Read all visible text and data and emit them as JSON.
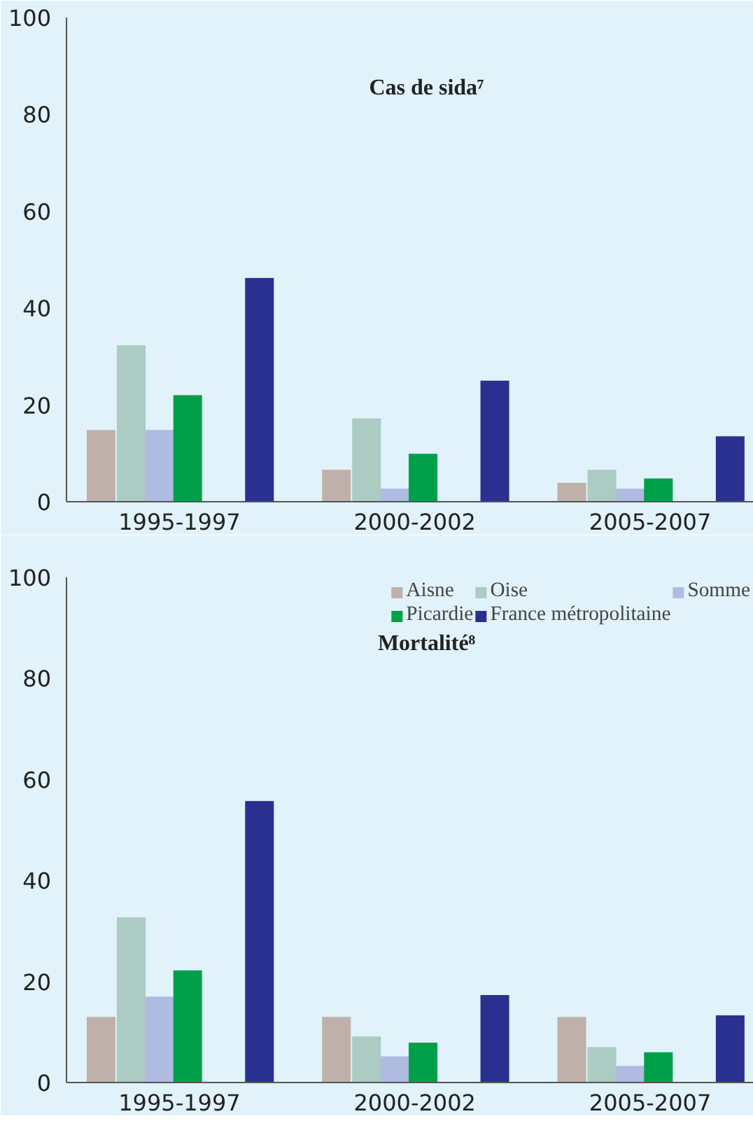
{
  "chart_data": [
    {
      "type": "bar",
      "title": "Cas de sida⁷",
      "categories": [
        "1995-1997",
        "2000-2002",
        "2005-2007"
      ],
      "ylim": [
        0,
        100
      ],
      "yticks": [
        0,
        20,
        40,
        60,
        80,
        100
      ],
      "grid": false,
      "legend": false,
      "series": [
        {
          "color": "#bfb1aa",
          "values": [
            14.8,
            6.6,
            3.9
          ]
        },
        {
          "color": "#abcbc3",
          "values": [
            32.3,
            17.2,
            6.6
          ]
        },
        {
          "color": "#afbbe0",
          "values": [
            14.8,
            2.7,
            2.7
          ]
        },
        {
          "color": "#00a04a",
          "values": [
            22,
            9.9,
            4.8
          ]
        },
        {
          "color": "#2a3090",
          "values": [
            46.2,
            25,
            13.5
          ]
        }
      ]
    },
    {
      "type": "bar",
      "title": "Mortalité⁸",
      "categories": [
        "1995-1997",
        "2000-2002",
        "2005-2007"
      ],
      "ylim": [
        0,
        100
      ],
      "yticks": [
        0,
        20,
        40,
        60,
        80,
        100
      ],
      "grid": false,
      "legend": "top right",
      "series": [
        {
          "name": "Aisne",
          "color": "#bfb1aa",
          "values": [
            13,
            13,
            13
          ]
        },
        {
          "name": "Oise",
          "color": "#abcbc3",
          "values": [
            32.7,
            9.1,
            7
          ]
        },
        {
          "name": "Somme",
          "color": "#afbbe0",
          "values": [
            17,
            5.2,
            3.3
          ]
        },
        {
          "name": "Picardie",
          "color": "#00a04a",
          "values": [
            22.2,
            7.9,
            6
          ]
        },
        {
          "name": "France métropolitaine",
          "color": "#2a3090",
          "values": [
            55.7,
            17.3,
            13.3
          ]
        }
      ]
    }
  ]
}
